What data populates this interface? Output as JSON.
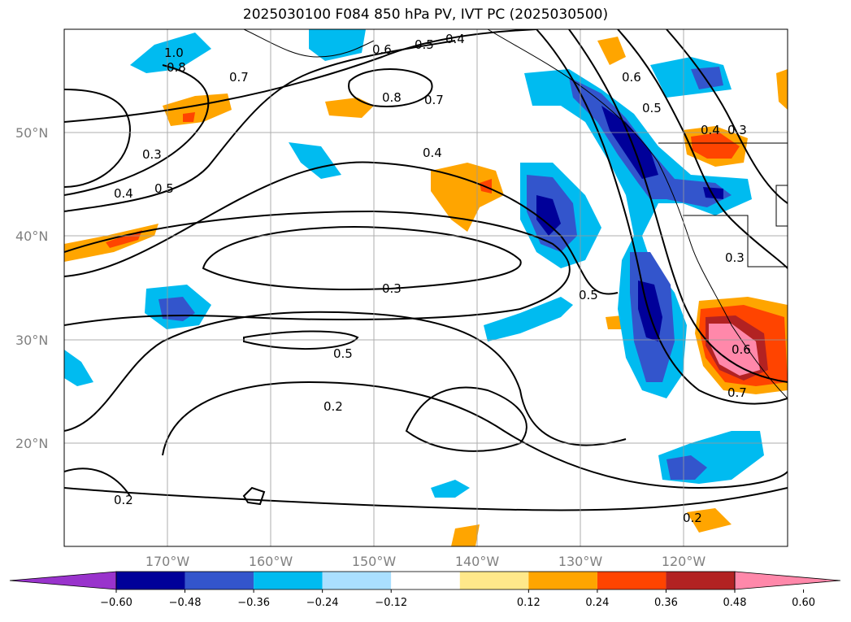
{
  "title": "2025030100 F084 850 hPa PV, IVT PC (2025030500)",
  "lat_labels": [
    "50°N",
    "40°N",
    "30°N",
    "20°N"
  ],
  "lon_labels": [
    "170°W",
    "160°W",
    "150°W",
    "140°W",
    "130°W",
    "120°W"
  ],
  "contour_labels": [
    "1.0",
    "0.8",
    "0.7",
    "0.6",
    "0.5",
    "0.4",
    "0.8",
    "0.7",
    "0.6",
    "0.5",
    "0.4",
    "0.3",
    "0.3",
    "0.4",
    "0.5",
    "0.4",
    "0.3",
    "0.5",
    "0.5",
    "0.2",
    "0.6",
    "0.7",
    "0.3",
    "0.2",
    "0.2"
  ],
  "colorbar": {
    "ticks": [
      "−0.60",
      "−0.48",
      "−0.36",
      "−0.24",
      "−0.12",
      "0.12",
      "0.24",
      "0.36",
      "0.48",
      "0.60"
    ],
    "colors": [
      "#9933cc",
      "#000099",
      "#3355cc",
      "#00bbf0",
      "#aadfff",
      "#ffffff",
      "#ffe88a",
      "#ffa500",
      "#ff4400",
      "#b22222",
      "#ff88aa"
    ]
  },
  "map_data": {
    "extent": {
      "lon_min": -180,
      "lon_max": -110,
      "lat_min": 10,
      "lat_max": 60
    },
    "fields": [
      "850 hPa PV (contours)",
      "IVT PC (shaded)"
    ]
  }
}
